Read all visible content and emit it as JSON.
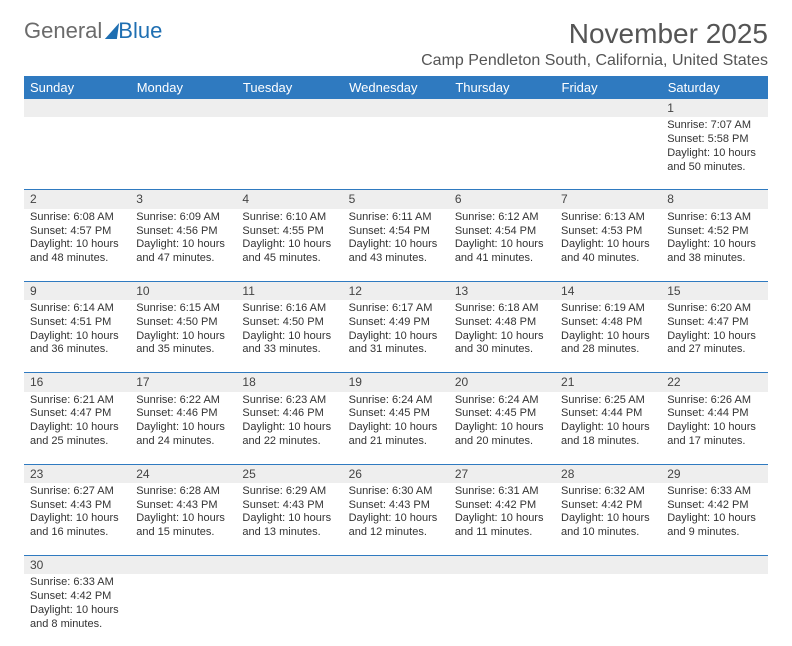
{
  "logo": {
    "part1": "General",
    "part2": "Blue"
  },
  "header": {
    "month_title": "November 2025",
    "location": "Camp Pendleton South, California, United States"
  },
  "colors": {
    "header_bg": "#2f7ac0",
    "header_text": "#ffffff",
    "daynum_bg": "#eeeeee",
    "cell_border": "#2f7ac0",
    "body_text": "#333333",
    "month_text": "#555555",
    "logo_gray": "#6b6b6b",
    "logo_blue": "#1f6fb2"
  },
  "typography": {
    "month_fontsize": 28,
    "location_fontsize": 16,
    "weekday_fontsize": 13,
    "daynum_fontsize": 12,
    "body_fontsize": 11
  },
  "weekdays": [
    "Sunday",
    "Monday",
    "Tuesday",
    "Wednesday",
    "Thursday",
    "Friday",
    "Saturday"
  ],
  "weeks": [
    [
      null,
      null,
      null,
      null,
      null,
      null,
      {
        "n": "1",
        "sunrise": "7:07 AM",
        "sunset": "5:58 PM",
        "day_h": "10",
        "day_m": "50"
      }
    ],
    [
      {
        "n": "2",
        "sunrise": "6:08 AM",
        "sunset": "4:57 PM",
        "day_h": "10",
        "day_m": "48"
      },
      {
        "n": "3",
        "sunrise": "6:09 AM",
        "sunset": "4:56 PM",
        "day_h": "10",
        "day_m": "47"
      },
      {
        "n": "4",
        "sunrise": "6:10 AM",
        "sunset": "4:55 PM",
        "day_h": "10",
        "day_m": "45"
      },
      {
        "n": "5",
        "sunrise": "6:11 AM",
        "sunset": "4:54 PM",
        "day_h": "10",
        "day_m": "43"
      },
      {
        "n": "6",
        "sunrise": "6:12 AM",
        "sunset": "4:54 PM",
        "day_h": "10",
        "day_m": "41"
      },
      {
        "n": "7",
        "sunrise": "6:13 AM",
        "sunset": "4:53 PM",
        "day_h": "10",
        "day_m": "40"
      },
      {
        "n": "8",
        "sunrise": "6:13 AM",
        "sunset": "4:52 PM",
        "day_h": "10",
        "day_m": "38"
      }
    ],
    [
      {
        "n": "9",
        "sunrise": "6:14 AM",
        "sunset": "4:51 PM",
        "day_h": "10",
        "day_m": "36"
      },
      {
        "n": "10",
        "sunrise": "6:15 AM",
        "sunset": "4:50 PM",
        "day_h": "10",
        "day_m": "35"
      },
      {
        "n": "11",
        "sunrise": "6:16 AM",
        "sunset": "4:50 PM",
        "day_h": "10",
        "day_m": "33"
      },
      {
        "n": "12",
        "sunrise": "6:17 AM",
        "sunset": "4:49 PM",
        "day_h": "10",
        "day_m": "31"
      },
      {
        "n": "13",
        "sunrise": "6:18 AM",
        "sunset": "4:48 PM",
        "day_h": "10",
        "day_m": "30"
      },
      {
        "n": "14",
        "sunrise": "6:19 AM",
        "sunset": "4:48 PM",
        "day_h": "10",
        "day_m": "28"
      },
      {
        "n": "15",
        "sunrise": "6:20 AM",
        "sunset": "4:47 PM",
        "day_h": "10",
        "day_m": "27"
      }
    ],
    [
      {
        "n": "16",
        "sunrise": "6:21 AM",
        "sunset": "4:47 PM",
        "day_h": "10",
        "day_m": "25"
      },
      {
        "n": "17",
        "sunrise": "6:22 AM",
        "sunset": "4:46 PM",
        "day_h": "10",
        "day_m": "24"
      },
      {
        "n": "18",
        "sunrise": "6:23 AM",
        "sunset": "4:46 PM",
        "day_h": "10",
        "day_m": "22"
      },
      {
        "n": "19",
        "sunrise": "6:24 AM",
        "sunset": "4:45 PM",
        "day_h": "10",
        "day_m": "21"
      },
      {
        "n": "20",
        "sunrise": "6:24 AM",
        "sunset": "4:45 PM",
        "day_h": "10",
        "day_m": "20"
      },
      {
        "n": "21",
        "sunrise": "6:25 AM",
        "sunset": "4:44 PM",
        "day_h": "10",
        "day_m": "18"
      },
      {
        "n": "22",
        "sunrise": "6:26 AM",
        "sunset": "4:44 PM",
        "day_h": "10",
        "day_m": "17"
      }
    ],
    [
      {
        "n": "23",
        "sunrise": "6:27 AM",
        "sunset": "4:43 PM",
        "day_h": "10",
        "day_m": "16"
      },
      {
        "n": "24",
        "sunrise": "6:28 AM",
        "sunset": "4:43 PM",
        "day_h": "10",
        "day_m": "15"
      },
      {
        "n": "25",
        "sunrise": "6:29 AM",
        "sunset": "4:43 PM",
        "day_h": "10",
        "day_m": "13"
      },
      {
        "n": "26",
        "sunrise": "6:30 AM",
        "sunset": "4:43 PM",
        "day_h": "10",
        "day_m": "12"
      },
      {
        "n": "27",
        "sunrise": "6:31 AM",
        "sunset": "4:42 PM",
        "day_h": "10",
        "day_m": "11"
      },
      {
        "n": "28",
        "sunrise": "6:32 AM",
        "sunset": "4:42 PM",
        "day_h": "10",
        "day_m": "10"
      },
      {
        "n": "29",
        "sunrise": "6:33 AM",
        "sunset": "4:42 PM",
        "day_h": "10",
        "day_m": "9"
      }
    ],
    [
      {
        "n": "30",
        "sunrise": "6:33 AM",
        "sunset": "4:42 PM",
        "day_h": "10",
        "day_m": "8"
      },
      null,
      null,
      null,
      null,
      null,
      null
    ]
  ],
  "labels": {
    "sunrise_prefix": "Sunrise: ",
    "sunset_prefix": "Sunset: ",
    "daylight_prefix": "Daylight: ",
    "hours_word": " hours",
    "and_word": "and ",
    "minutes_word": " minutes."
  }
}
